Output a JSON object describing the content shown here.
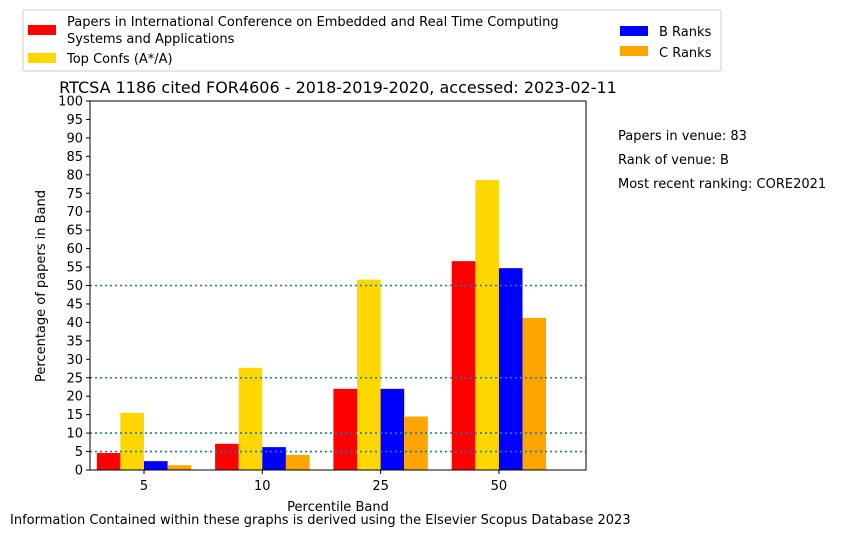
{
  "chart_data": {
    "type": "bar",
    "title": "RTCSA 1186 cited FOR4606 - 2018-2019-2020, accessed: 2023-02-11",
    "xlabel": "Percentile Band",
    "ylabel": "Percentage of papers in Band",
    "categories": [
      "5",
      "10",
      "25",
      "50"
    ],
    "ylim": [
      0,
      100
    ],
    "yticks": [
      "0",
      "5",
      "10",
      "15",
      "20",
      "25",
      "30",
      "35",
      "40",
      "45",
      "50",
      "55",
      "60",
      "65",
      "70",
      "75",
      "80",
      "85",
      "90",
      "95",
      "100"
    ],
    "series": [
      {
        "name": "Papers in International Conference on Embedded and Real Time Computing Systems and Applications",
        "name_line1": "Papers in International Conference on Embedded and Real Time Computing",
        "name_line2": "Systems and Applications",
        "color": "#ff0000",
        "values": [
          4.6,
          7.1,
          22.0,
          56.6
        ]
      },
      {
        "name": "Top Confs (A*/A)",
        "color": "#ffd700",
        "values": [
          15.5,
          27.7,
          51.6,
          78.6
        ]
      },
      {
        "name": "B Ranks",
        "color": "#0000ff",
        "values": [
          2.4,
          6.2,
          22.0,
          54.7
        ]
      },
      {
        "name": "C Ranks",
        "color": "#ffa500",
        "values": [
          1.3,
          4.1,
          14.5,
          41.2
        ]
      }
    ],
    "reference_lines": [
      5,
      10,
      25,
      50
    ],
    "reference_line_color": "#1f77b4",
    "grid": false,
    "legend_placement": "top"
  },
  "info": {
    "papers": "Papers in venue: 83",
    "rank": "Rank of venue: B",
    "recent": "Most recent ranking: CORE2021"
  },
  "footer": "Information Contained within these graphs is derived using the Elsevier Scopus Database 2023"
}
